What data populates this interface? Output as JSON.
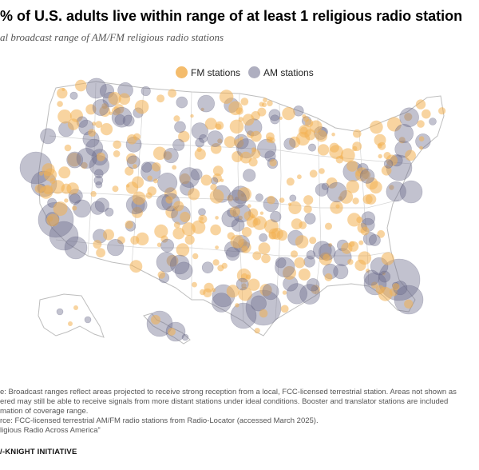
{
  "header": {
    "title": "% of U.S. adults live within range of at least 1 religious radio station",
    "subtitle": "al broadcast range of AM/FM religious radio stations"
  },
  "legend": {
    "fm_label": "FM stations",
    "am_label": "AM stations"
  },
  "colors": {
    "fm": "#f2b052",
    "am": "#6e6e8c",
    "land": "#ffffff",
    "border": "#bdbdbd"
  },
  "footer": {
    "note_line1": "e: Broadcast ranges reflect areas projected to receive strong reception from a local, FCC-licensed terrestrial station. Areas not shown as",
    "note_line2": "ered may still be able to receive signals from more distant stations under ideal conditions. Booster and translator stations are included",
    "note_line3": "mation of coverage range.",
    "source_line": "rce: FCC-licensed terrestrial AM/FM radio stations from Radio-Locator (accessed March 2025).",
    "report_line": "ligious Radio Across America”",
    "brand": "/-KNIGHT INITIATIVE"
  }
}
